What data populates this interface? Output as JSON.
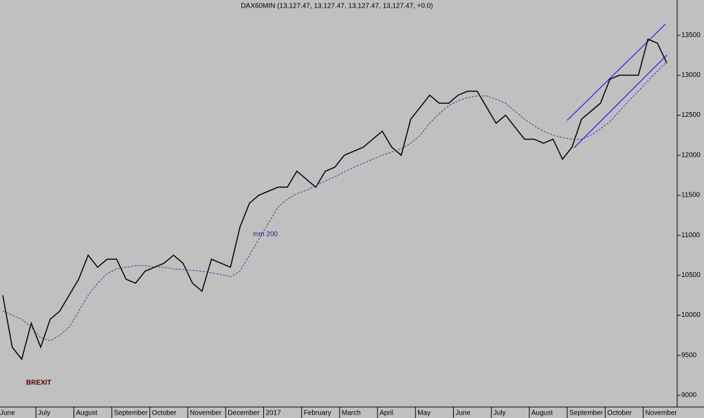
{
  "chart_data": {
    "type": "line",
    "title": "DAX60MIN (13,127.47, 13,127.47, 13,127.47, 13,127.47, +0.0)",
    "categories": [
      "June",
      null,
      null,
      null,
      "July",
      null,
      null,
      null,
      "August",
      null,
      null,
      null,
      "September",
      null,
      null,
      null,
      "October",
      null,
      null,
      null,
      "November",
      null,
      null,
      null,
      "December",
      null,
      null,
      null,
      "2017",
      null,
      null,
      null,
      "February",
      null,
      null,
      null,
      "March",
      null,
      null,
      null,
      "April",
      null,
      null,
      null,
      "May",
      null,
      null,
      null,
      "June",
      null,
      null,
      null,
      "July",
      null,
      null,
      null,
      "August",
      null,
      null,
      null,
      "September",
      null,
      null,
      null,
      "October",
      null,
      null,
      null,
      "November",
      null,
      null
    ],
    "series": [
      {
        "name": "DAX60MIN",
        "color": "#000000",
        "values": [
          10250,
          9600,
          9450,
          9900,
          9600,
          9950,
          10050,
          10250,
          10450,
          10750,
          10600,
          10700,
          10700,
          10450,
          10400,
          10550,
          10600,
          10650,
          10750,
          10650,
          10400,
          10300,
          10700,
          10650,
          10600,
          11100,
          11400,
          11500,
          11550,
          11600,
          11600,
          11800,
          11700,
          11600,
          11800,
          11850,
          12000,
          12050,
          12100,
          12200,
          12300,
          12100,
          12000,
          12450,
          12600,
          12750,
          12650,
          12650,
          12750,
          12800,
          12800,
          12600,
          12400,
          12500,
          12350,
          12200,
          12200,
          12150,
          12200,
          11950,
          12100,
          12450,
          12550,
          12650,
          12950,
          13000,
          13000,
          13000,
          13450,
          13400,
          13150
        ]
      },
      {
        "name": "mm 200",
        "color": "#5a2a9a",
        "values": [
          10050,
          10000,
          9950,
          9850,
          9720,
          9680,
          9750,
          9850,
          10050,
          10250,
          10400,
          10520,
          10580,
          10600,
          10620,
          10620,
          10600,
          10600,
          10580,
          10570,
          10560,
          10550,
          10530,
          10510,
          10480,
          10550,
          10750,
          10950,
          11150,
          11350,
          11450,
          11520,
          11560,
          11620,
          11680,
          11730,
          11790,
          11850,
          11900,
          11950,
          12000,
          12040,
          12080,
          12150,
          12250,
          12400,
          12520,
          12620,
          12680,
          12720,
          12740,
          12740,
          12700,
          12650,
          12550,
          12450,
          12370,
          12300,
          12250,
          12220,
          12200,
          12200,
          12250,
          12330,
          12420,
          12550,
          12680,
          12800,
          12930,
          13050,
          13170
        ]
      }
    ],
    "annotations": [
      "BREXIT"
    ],
    "ylim": [
      8870,
      13940
    ],
    "yticks": [
      9000,
      9500,
      10000,
      10500,
      11000,
      11500,
      12000,
      12500,
      13000,
      13500
    ]
  }
}
